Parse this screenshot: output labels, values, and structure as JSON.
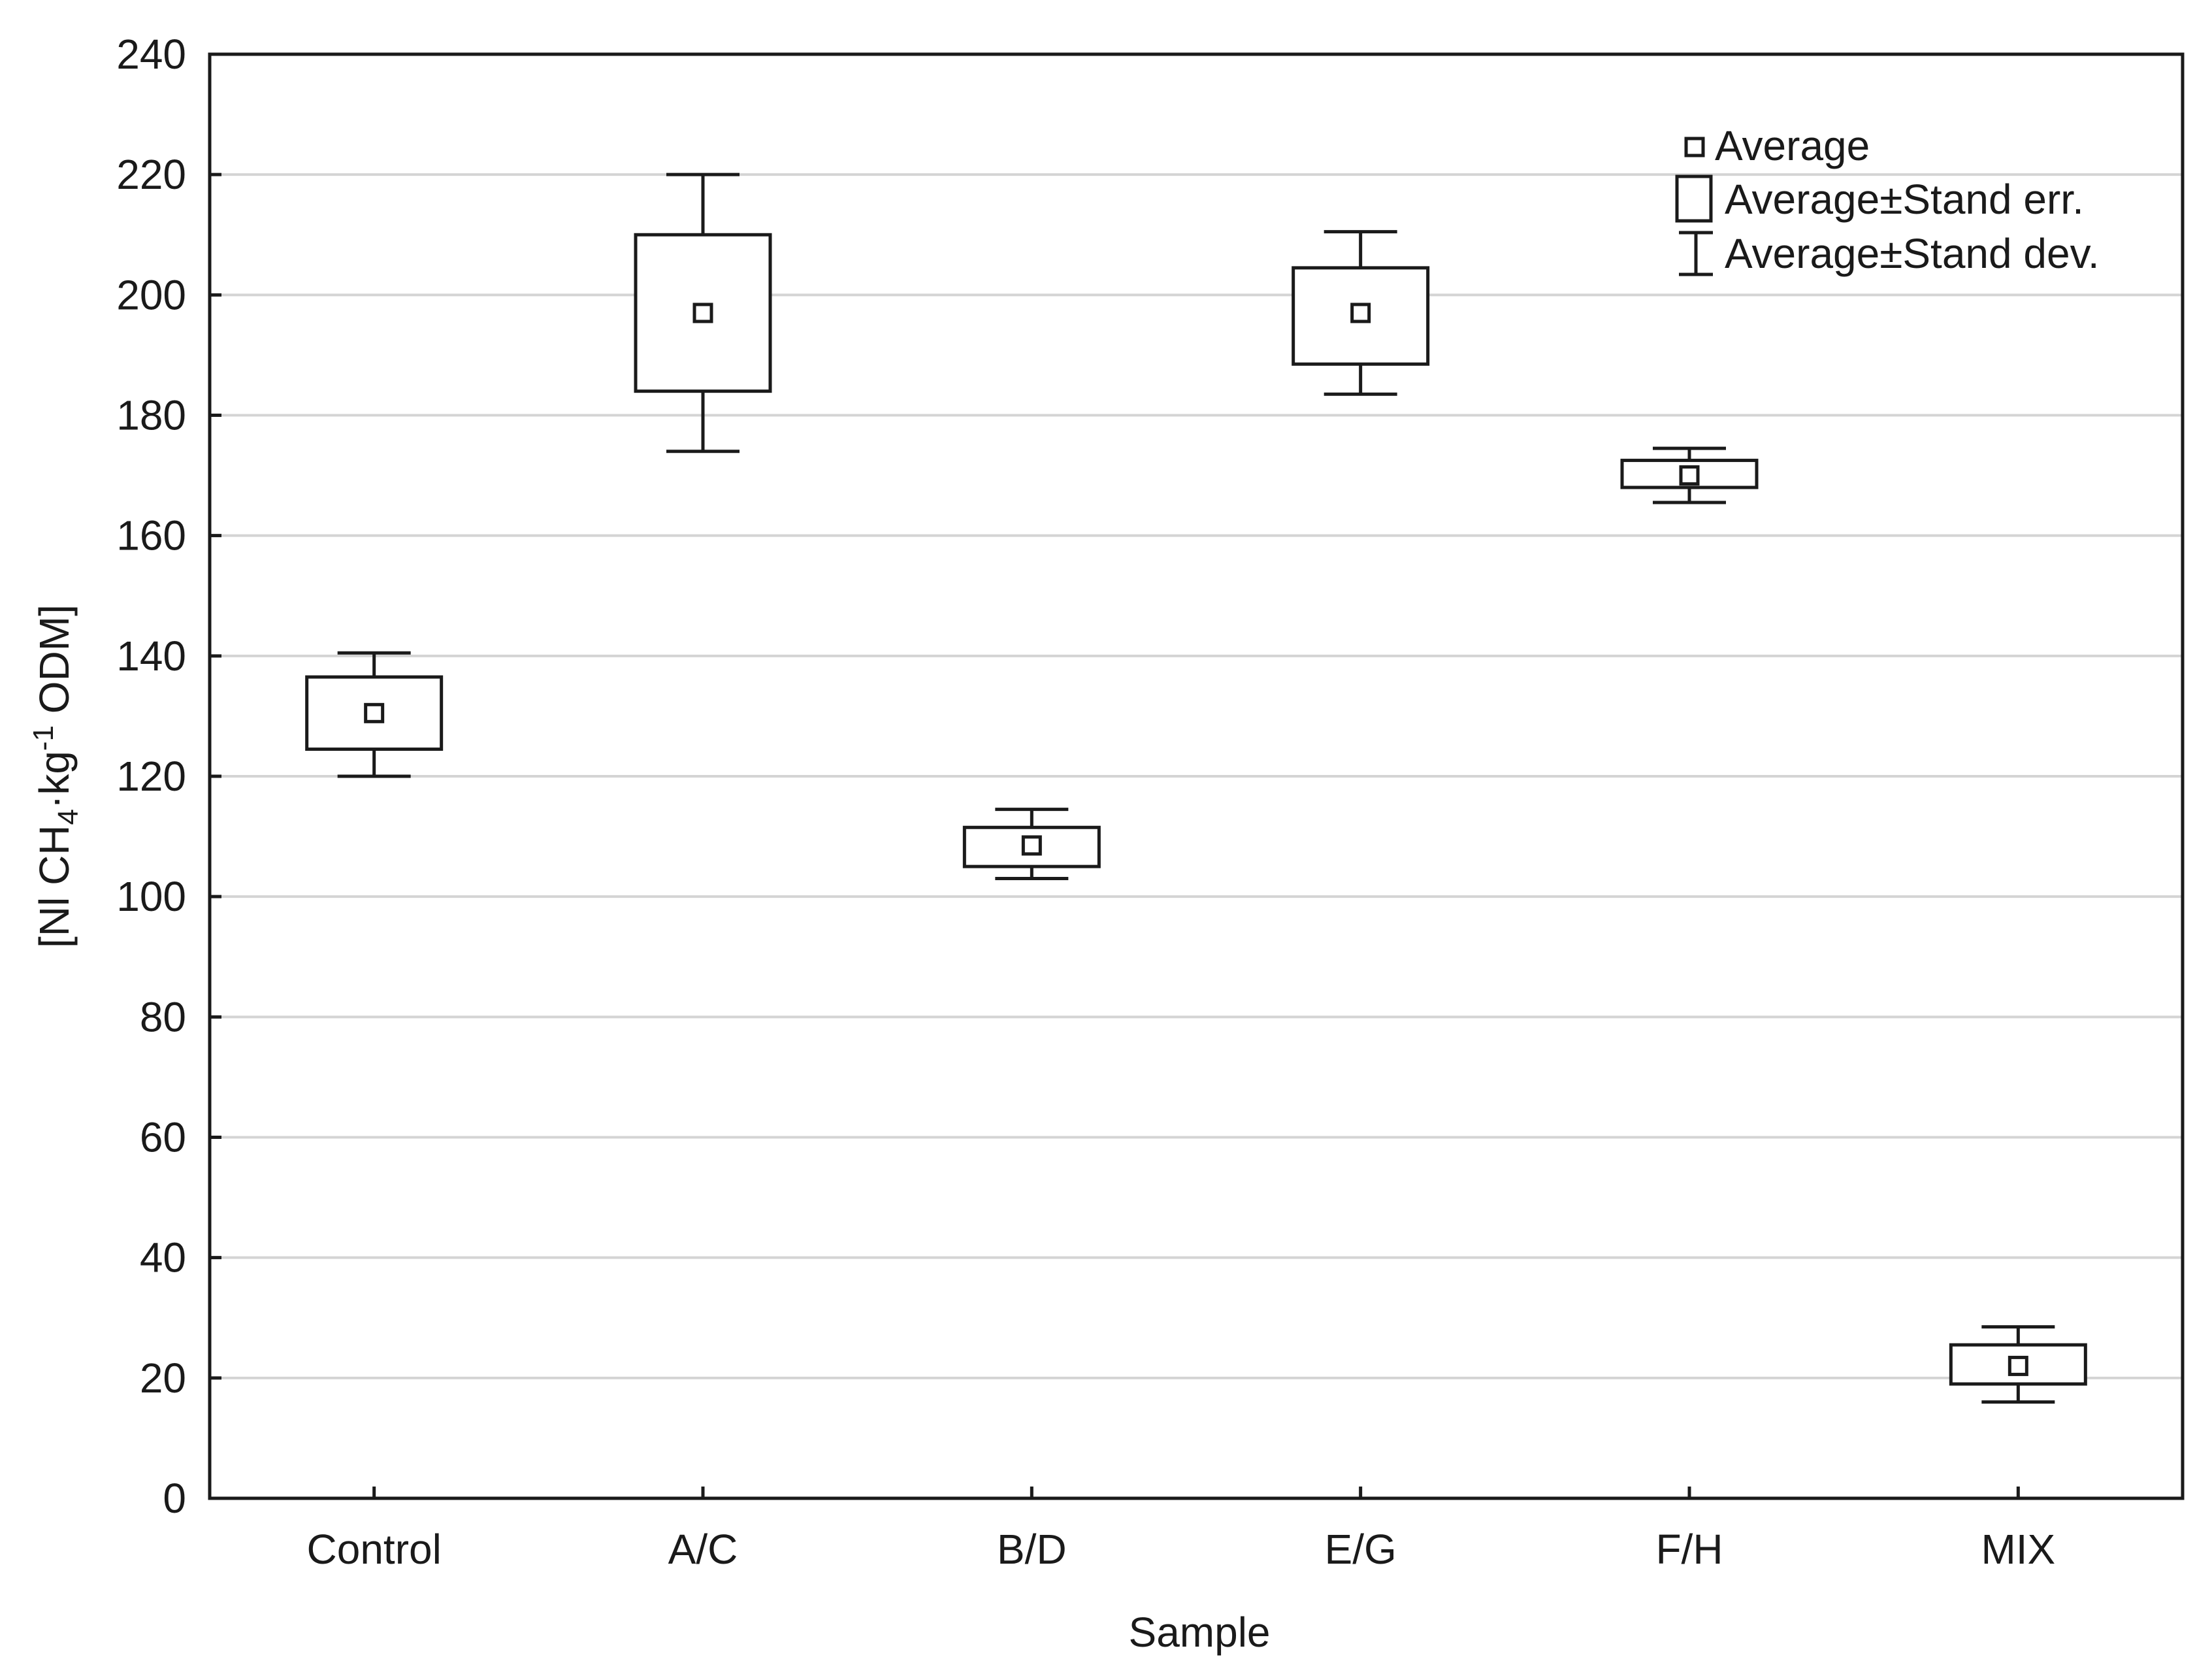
{
  "chart_data": {
    "type": "boxplot",
    "xlabel": "Sample",
    "ylabel": {
      "prefix": "[Nl CH",
      "sub": "4",
      "mid": "·kg",
      "sup": "-1",
      "suffix": " ODM]"
    },
    "ylim": [
      0,
      240
    ],
    "yticks": [
      0,
      20,
      40,
      60,
      80,
      100,
      120,
      140,
      160,
      180,
      200,
      220,
      240
    ],
    "grid": true,
    "legend_position": "top-right",
    "legend": {
      "mean": "Average",
      "box": "Average±Stand err.",
      "whisker": "Average±Stand dev."
    },
    "categories": [
      "Control",
      "A/C",
      "B/D",
      "E/G",
      "F/H",
      "MIX"
    ],
    "series": [
      {
        "name": "Control",
        "mean": 130.5,
        "se_low": 124.5,
        "se_high": 136.5,
        "sd_low": 120,
        "sd_high": 140.5
      },
      {
        "name": "A/C",
        "mean": 197,
        "se_low": 184,
        "se_high": 210,
        "sd_low": 174,
        "sd_high": 220
      },
      {
        "name": "B/D",
        "mean": 108.5,
        "se_low": 105,
        "se_high": 111.5,
        "sd_low": 103,
        "sd_high": 114.5
      },
      {
        "name": "E/G",
        "mean": 197,
        "se_low": 188.5,
        "se_high": 204.5,
        "sd_low": 183.5,
        "sd_high": 210.5
      },
      {
        "name": "F/H",
        "mean": 170,
        "se_low": 168,
        "se_high": 172.5,
        "sd_low": 165.5,
        "sd_high": 174.5
      },
      {
        "name": "MIX",
        "mean": 22,
        "se_low": 19,
        "se_high": 25.5,
        "sd_low": 16,
        "sd_high": 28.5
      }
    ]
  }
}
